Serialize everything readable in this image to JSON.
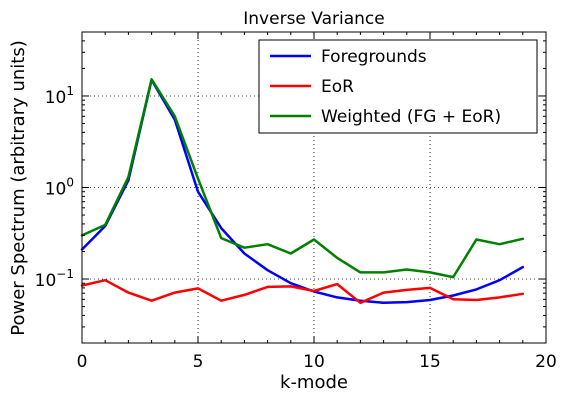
{
  "chart_data": {
    "type": "line",
    "title": "Inverse Variance",
    "xlabel": "k-mode",
    "ylabel": "Power Spectrum (arbitrary units)",
    "xlim": [
      0,
      20
    ],
    "ylim": [
      0.02,
      50
    ],
    "yscale": "log",
    "grid": true,
    "legend_position": "top-right",
    "x_ticks": [
      0,
      5,
      10,
      15,
      20
    ],
    "x_tick_labels": [
      "0",
      "5",
      "10",
      "15",
      "20"
    ],
    "y_ticks": [
      0.1,
      1,
      10
    ],
    "y_tick_labels": [
      {
        "base": "10",
        "exp": "−1"
      },
      {
        "base": "10",
        "exp": "0"
      },
      {
        "base": "10",
        "exp": "1"
      }
    ],
    "x": [
      0,
      1,
      2,
      3,
      4,
      5,
      6,
      7,
      8,
      9,
      10,
      11,
      12,
      13,
      14,
      15,
      16,
      17,
      18,
      19
    ],
    "series": [
      {
        "name": "Foregrounds",
        "color": "#0000ff",
        "values": [
          0.21,
          0.38,
          1.2,
          15,
          5.5,
          0.9,
          0.36,
          0.19,
          0.125,
          0.09,
          0.073,
          0.063,
          0.058,
          0.055,
          0.056,
          0.059,
          0.066,
          0.077,
          0.097,
          0.135
        ]
      },
      {
        "name": "EoR",
        "color": "#ff0000",
        "values": [
          0.085,
          0.097,
          0.071,
          0.058,
          0.071,
          0.079,
          0.058,
          0.067,
          0.082,
          0.083,
          0.074,
          0.088,
          0.055,
          0.071,
          0.076,
          0.08,
          0.06,
          0.059,
          0.063,
          0.069
        ]
      },
      {
        "name": "Weighted (FG + EoR)",
        "color": "#008000",
        "values": [
          0.3,
          0.39,
          1.3,
          15.2,
          6.0,
          1.25,
          0.28,
          0.22,
          0.24,
          0.19,
          0.27,
          0.17,
          0.118,
          0.118,
          0.127,
          0.118,
          0.105,
          0.27,
          0.24,
          0.275
        ]
      }
    ]
  }
}
